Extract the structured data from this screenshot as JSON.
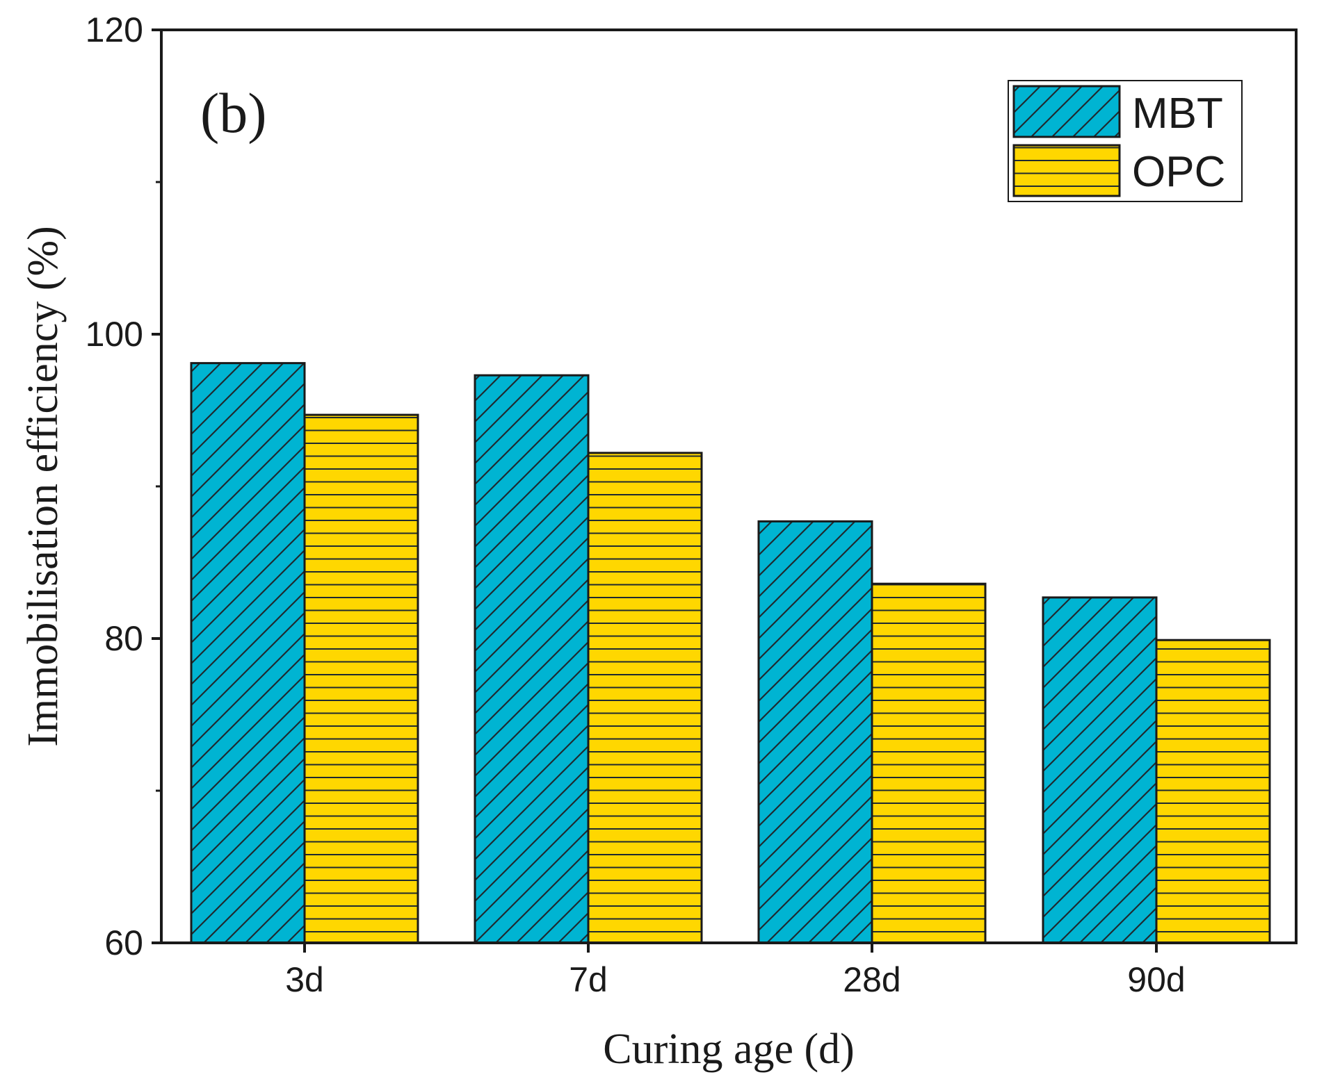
{
  "chart_data": {
    "type": "bar",
    "panel_label": "(b)",
    "title": "",
    "xlabel": "Curing age (d)",
    "ylabel": "Immobilisation efficiency (%)",
    "categories": [
      "3d",
      "7d",
      "28d",
      "90d"
    ],
    "series": [
      {
        "name": "MBT",
        "values": [
          98.1,
          97.3,
          87.7,
          82.7
        ],
        "color": "#00b4d2",
        "pattern": "diagonal-hatch"
      },
      {
        "name": "OPC",
        "values": [
          94.7,
          92.2,
          83.6,
          79.9
        ],
        "color": "#ffd700",
        "pattern": "horizontal-hatch"
      }
    ],
    "ylim": [
      60,
      120
    ],
    "yticks_major": [
      60,
      80,
      100,
      120
    ],
    "yticks_minor": [
      70,
      90,
      110
    ],
    "grid": false,
    "legend_position": "top-right"
  }
}
